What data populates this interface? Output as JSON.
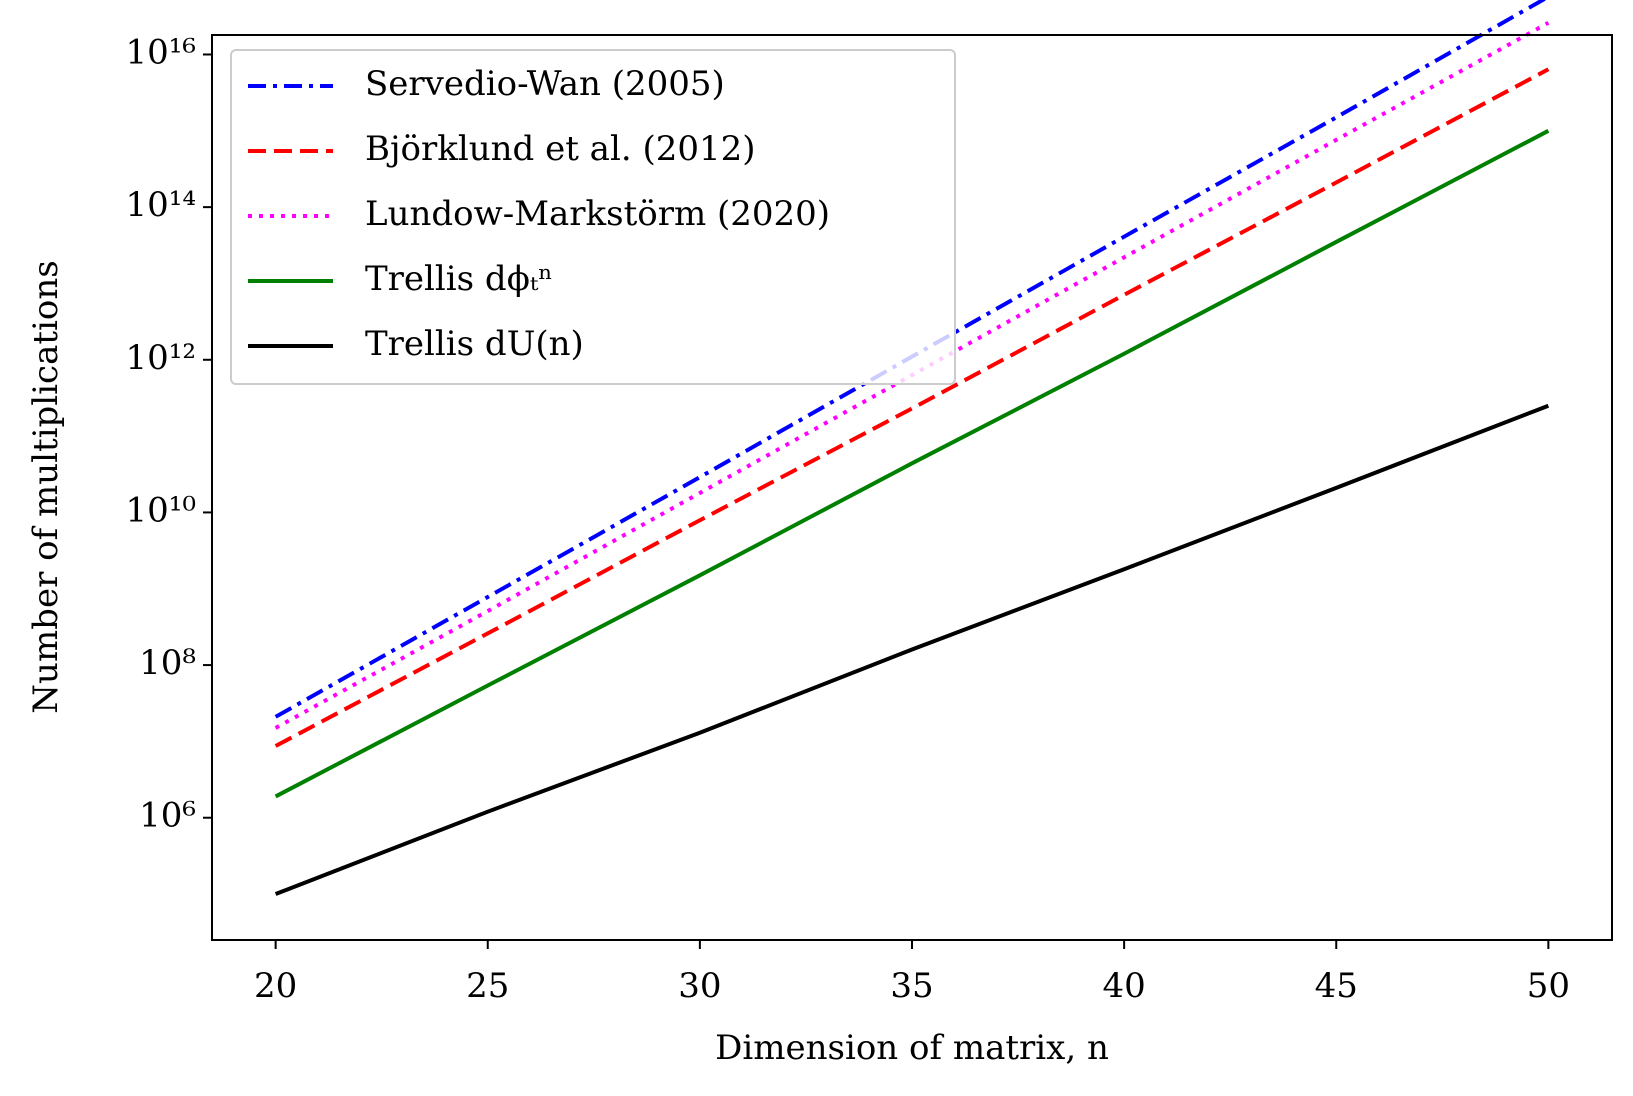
{
  "chart_data": {
    "type": "line",
    "xlabel": "Dimension of matrix, n",
    "ylabel": "Number of multiplications",
    "yscale": "log",
    "legend": "upper left",
    "x": [
      20,
      25,
      30,
      35,
      40,
      45,
      50
    ],
    "xlim": [
      18.5,
      51.5
    ],
    "xticks": [
      20,
      25,
      30,
      35,
      40,
      45,
      50
    ],
    "ylim": [
      25000,
      18000000000000000
    ],
    "yticks": [
      {
        "value": 1000000,
        "label": "10⁶"
      },
      {
        "value": 100000000,
        "label": "10⁸"
      },
      {
        "value": 10000000000,
        "label": "10¹⁰"
      },
      {
        "value": 1000000000000,
        "label": "10¹²"
      },
      {
        "value": 100000000000000,
        "label": "10¹⁴"
      },
      {
        "value": 10000000000000000,
        "label": "10¹⁶"
      }
    ],
    "series": [
      {
        "name": "Servedio-Wan (2005)",
        "color": "#0000ff",
        "linestyle": "dashdot",
        "values": [
          21000000,
          780000000,
          29000000000,
          1100000000000,
          41000000000000,
          1500000000000000,
          57000000000000000
        ]
      },
      {
        "name": "Björklund et al. (2012)",
        "color": "#ff0000",
        "linestyle": "dashed",
        "values": [
          8700000,
          260000000,
          7900000000,
          230000000000,
          7100000000000,
          210000000000000,
          6400000000000000
        ]
      },
      {
        "name": "Lundow-Markstörm (2020)",
        "color": "#ff00ff",
        "linestyle": "dotted",
        "values": [
          15000000,
          510000000,
          18000000000,
          630000000000,
          22000000000000,
          760000000000000,
          26000000000000000
        ]
      },
      {
        "name": "Trellis dϕₜⁿ",
        "color": "#008000",
        "linestyle": "solid",
        "values": [
          1900000,
          54000000,
          1500000000,
          44000000000,
          1200000000000,
          35000000000000,
          1000000000000000
        ]
      },
      {
        "name": "Trellis dU(n)",
        "color": "#000000",
        "linestyle": "solid",
        "values": [
          100000,
          1200000,
          13000000,
          160000000,
          1800000000,
          21000000000,
          250000000000
        ]
      }
    ]
  }
}
